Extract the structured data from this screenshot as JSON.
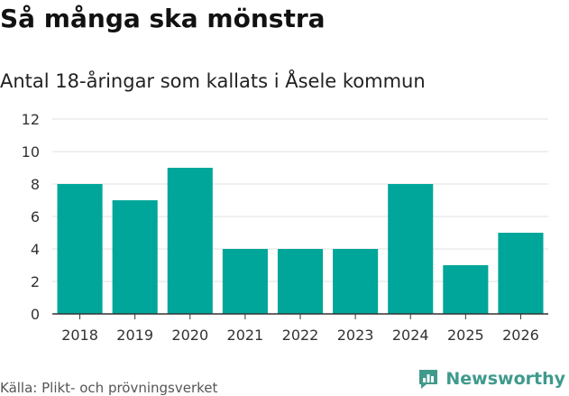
{
  "header": {
    "title": "Så många ska mönstra",
    "subtitle": "Antal 18-åringar som kallats i Åsele kommun"
  },
  "footer": {
    "source": "Källa: Plikt- och prövningsverket",
    "brand_name": "Newsworthy",
    "brand_icon": "newsworthy-logo-icon",
    "brand_color": "#3f9a8c"
  },
  "chart_data": {
    "type": "bar",
    "categories": [
      "2018",
      "2019",
      "2020",
      "2021",
      "2022",
      "2023",
      "2024",
      "2025",
      "2026"
    ],
    "values": [
      8,
      7,
      9,
      4,
      4,
      4,
      8,
      3,
      5
    ],
    "xlabel": "",
    "ylabel": "",
    "ylim": [
      0,
      12
    ],
    "yticks": [
      0,
      2,
      4,
      6,
      8,
      10,
      12
    ],
    "grid": true,
    "legend": "none",
    "bar_color": "#00a69a",
    "grid_color": "#e0e0e0",
    "axis_color": "#333333"
  }
}
